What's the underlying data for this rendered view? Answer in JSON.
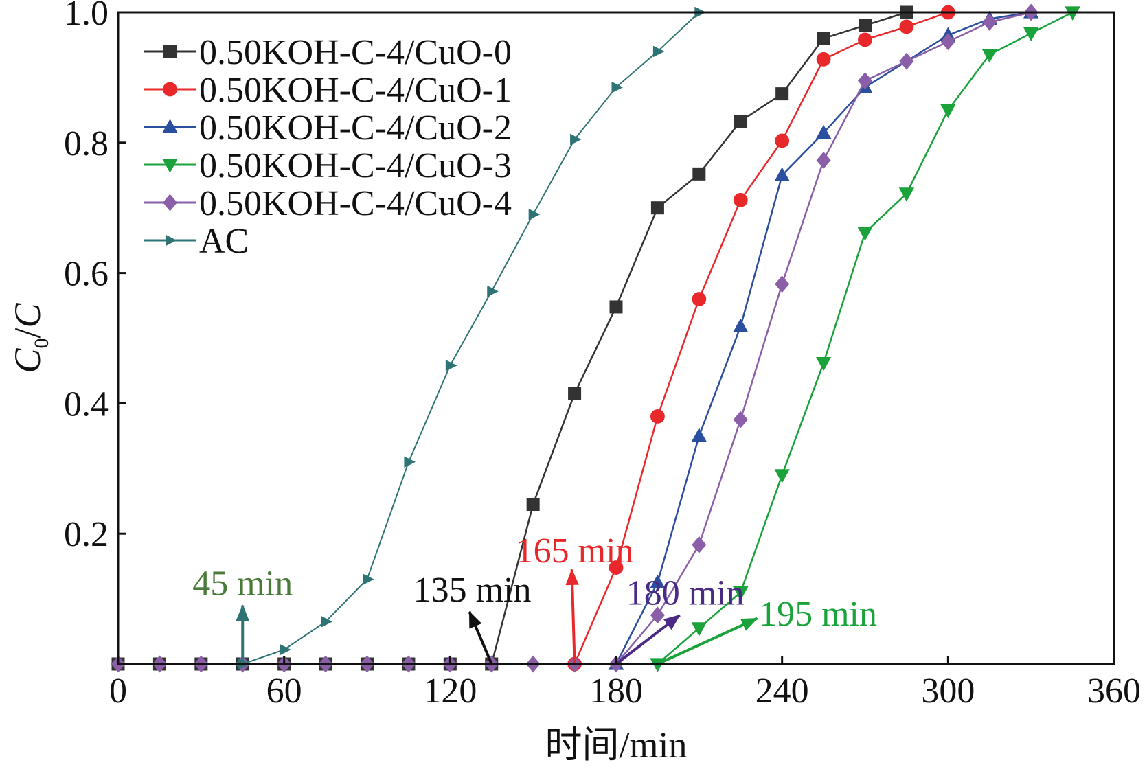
{
  "chart_data": {
    "type": "line",
    "xlabel": "时间/min",
    "ylabel": "C0/C",
    "ylabel_parts": {
      "main": "C",
      "sub": "0",
      "slash": "/",
      "den": "C"
    },
    "xlim": [
      0,
      360
    ],
    "ylim": [
      0,
      1.0
    ],
    "xticks": [
      0,
      60,
      120,
      180,
      240,
      300,
      360
    ],
    "yticks": [
      0.2,
      0.4,
      0.6,
      0.8,
      1.0
    ],
    "ytick_labels": [
      "0.2",
      "0.4",
      "0.6",
      "0.8",
      "1.0"
    ],
    "grid": false,
    "legend_position": "top-left",
    "series": [
      {
        "name": "0.50KOH-C-4/CuO-0",
        "color": "#333333",
        "marker": "square",
        "x": [
          0,
          15,
          30,
          45,
          60,
          75,
          90,
          105,
          120,
          135,
          150,
          165,
          180,
          195,
          210,
          225,
          240,
          255,
          270,
          285
        ],
        "y": [
          0,
          0,
          0,
          0,
          0,
          0,
          0,
          0,
          0,
          0,
          0.245,
          0.415,
          0.548,
          0.7,
          0.752,
          0.833,
          0.875,
          0.96,
          0.98,
          1.0
        ]
      },
      {
        "name": "0.50KOH-C-4/CuO-1",
        "color": "#e8282a",
        "marker": "circle",
        "x": [
          165,
          180,
          195,
          210,
          225,
          240,
          255,
          270,
          285,
          300
        ],
        "y": [
          0,
          0.148,
          0.38,
          0.56,
          0.712,
          0.803,
          0.928,
          0.958,
          0.978,
          1.0
        ]
      },
      {
        "name": "0.50KOH-C-4/CuO-2",
        "color": "#2a4f9e",
        "marker": "triangle-up",
        "x": [
          180,
          195,
          210,
          225,
          240,
          255,
          270,
          300,
          315,
          330
        ],
        "y": [
          0,
          0.125,
          0.35,
          0.518,
          0.75,
          0.815,
          0.885,
          0.965,
          0.99,
          1.0
        ]
      },
      {
        "name": "0.50KOH-C-4/CuO-3",
        "color": "#1aa23b",
        "marker": "triangle-down",
        "x": [
          195,
          210,
          225,
          240,
          255,
          270,
          285,
          300,
          315,
          330,
          345
        ],
        "y": [
          0,
          0.055,
          0.11,
          0.29,
          0.462,
          0.662,
          0.722,
          0.85,
          0.935,
          0.968,
          1.0
        ]
      },
      {
        "name": "0.50KOH-C-4/CuO-4",
        "color": "#8a5fa8",
        "marker": "diamond",
        "x": [
          0,
          15,
          30,
          45,
          60,
          75,
          90,
          105,
          120,
          135,
          150,
          165,
          180,
          195,
          210,
          225,
          240,
          255,
          270,
          285,
          300,
          315,
          330
        ],
        "y": [
          0,
          0,
          0,
          0,
          0,
          0,
          0,
          0,
          0,
          0,
          0,
          0,
          0,
          0.075,
          0.183,
          0.375,
          0.583,
          0.773,
          0.895,
          0.925,
          0.955,
          0.985,
          1.0
        ]
      },
      {
        "name": "AC",
        "color": "#2f7474",
        "marker": "triangle-right",
        "x": [
          45,
          60,
          75,
          90,
          105,
          120,
          135,
          150,
          165,
          180,
          195,
          210
        ],
        "y": [
          0,
          0.022,
          0.065,
          0.13,
          0.31,
          0.458,
          0.572,
          0.69,
          0.805,
          0.885,
          0.94,
          1.0
        ]
      }
    ],
    "annotations": [
      {
        "text": "45 min",
        "color": "#4a7a3a",
        "arrow_color": "#2f7474",
        "x": 45,
        "arrow_from_y": 0,
        "arrow_to_y": 0.09,
        "text_x": 45,
        "text_y": 0.125
      },
      {
        "text": "135 min",
        "color": "#111111",
        "arrow_color": "#111111",
        "x": 135,
        "arrow_from_y": 0,
        "arrow_to_y": 0.08,
        "text_x": 128,
        "text_y": 0.115,
        "arrow_to_x": 127
      },
      {
        "text": "165 min",
        "color": "#e8282a",
        "arrow_color": "#e8282a",
        "x": 165,
        "arrow_from_y": 0,
        "arrow_to_y": 0.145,
        "text_x": 165,
        "text_y": 0.175,
        "arrow_to_x": 164
      },
      {
        "text": "180 min",
        "color": "#4b2a85",
        "arrow_color": "#4b2a85",
        "x": 180,
        "arrow_from_y": 0,
        "arrow_to_y": 0.075,
        "text_x": 205,
        "text_y": 0.11,
        "arrow_to_x": 203
      },
      {
        "text": "195 min",
        "color": "#1aa23b",
        "arrow_color": "#1aa23b",
        "x": 195,
        "arrow_from_y": 0,
        "arrow_to_y": 0.07,
        "text_x": 253,
        "text_y": 0.078,
        "arrow_to_x": 231
      }
    ]
  }
}
